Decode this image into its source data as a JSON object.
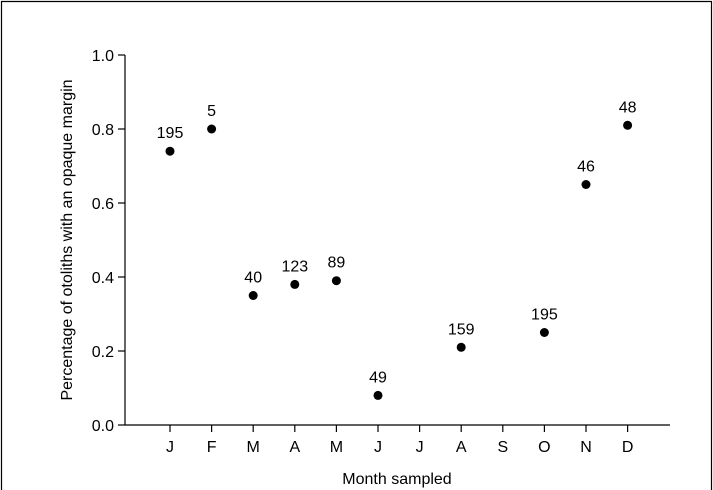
{
  "chart_data": {
    "type": "scatter",
    "xlabel": "Month sampled",
    "ylabel": "Percentage of otoliths with an opaque margin",
    "categories": [
      "J",
      "F",
      "M",
      "A",
      "M",
      "J",
      "J",
      "A",
      "S",
      "O",
      "N",
      "D"
    ],
    "ylim": [
      0,
      1.0
    ],
    "yticks": [
      "0.0",
      "0.2",
      "0.4",
      "0.6",
      "0.8",
      "1.0"
    ],
    "grid": false,
    "legend": "none",
    "points": [
      {
        "x": "J",
        "y": 0.74,
        "label": "195"
      },
      {
        "x": "F",
        "y": 0.8,
        "label": "5"
      },
      {
        "x": "M",
        "y": 0.35,
        "label": "40"
      },
      {
        "x": "A",
        "y": 0.38,
        "label": "123"
      },
      {
        "x": "M",
        "y": 0.39,
        "label": "89"
      },
      {
        "x": "J",
        "y": 0.08,
        "label": "49"
      },
      {
        "x": "J",
        "y": null,
        "label": ""
      },
      {
        "x": "A",
        "y": 0.21,
        "label": "159"
      },
      {
        "x": "S",
        "y": null,
        "label": ""
      },
      {
        "x": "O",
        "y": 0.25,
        "label": "195"
      },
      {
        "x": "N",
        "y": 0.65,
        "label": "46"
      },
      {
        "x": "D",
        "y": 0.81,
        "label": "48"
      }
    ],
    "colors": {
      "marker": "#000000",
      "axis": "#000000",
      "frame": "#000000"
    }
  }
}
